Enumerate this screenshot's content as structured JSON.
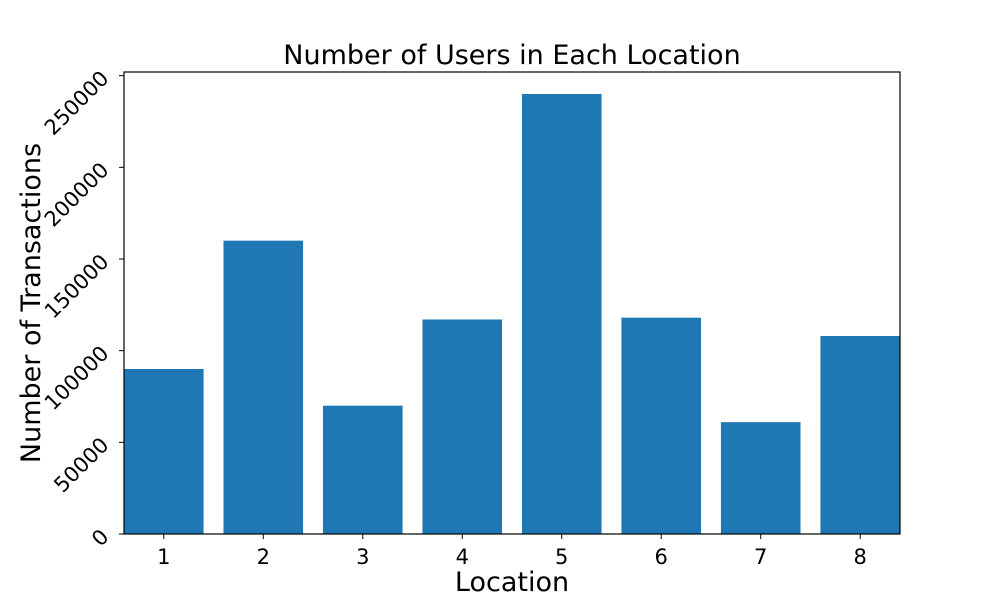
{
  "chart_data": {
    "type": "bar",
    "title": "Number of Users in Each Location",
    "xlabel": "Location",
    "ylabel": "Number of Transactions",
    "categories": [
      "1",
      "2",
      "3",
      "4",
      "5",
      "6",
      "7",
      "8"
    ],
    "values": [
      90000,
      160000,
      70000,
      117000,
      240000,
      118000,
      61000,
      108000
    ],
    "ylim": [
      0,
      252000
    ],
    "yticks": [
      0,
      50000,
      100000,
      150000,
      200000,
      250000
    ],
    "ytick_labels": [
      "0",
      "50000",
      "100000",
      "150000",
      "200000",
      "250000"
    ],
    "grid": false,
    "bar_color": "#1f77b4"
  }
}
